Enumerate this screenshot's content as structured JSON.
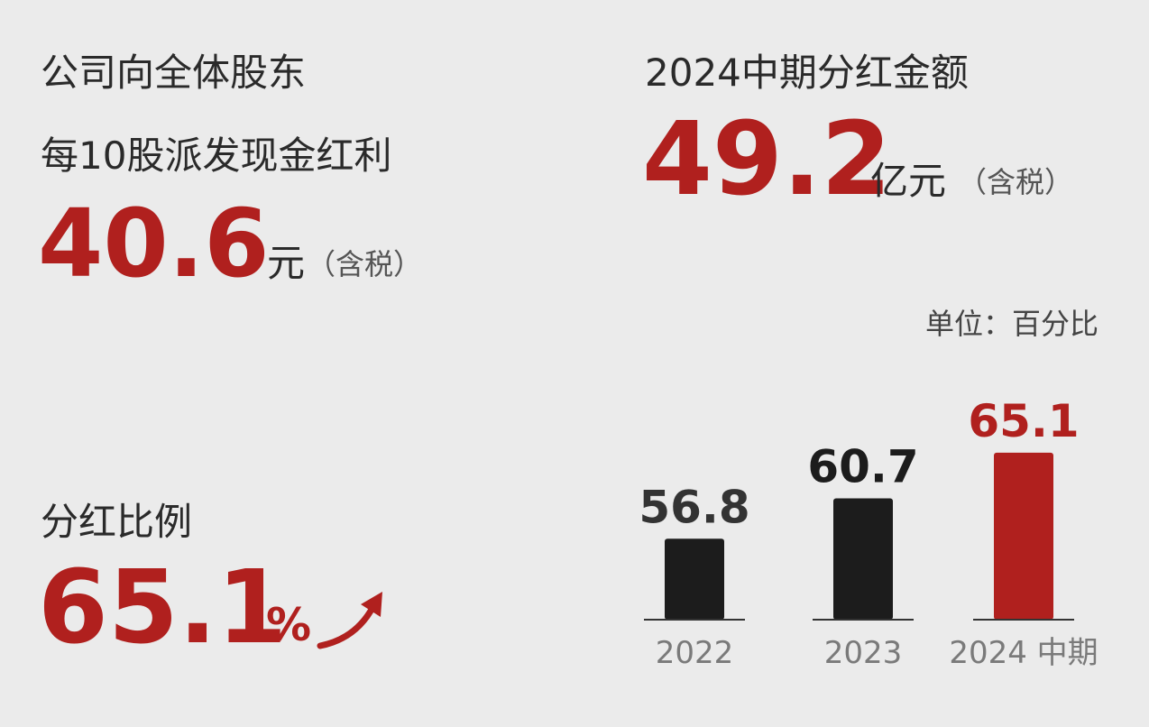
{
  "left": {
    "line1": "公司向全体股东",
    "line2": "每10股派发现金红利",
    "dividend": 40.6,
    "dividend_unit": "元",
    "dividend_note": "（含税）",
    "ratio_title": "分红比例",
    "ratio": 65.1,
    "ratio_unit": "%"
  },
  "right": {
    "title": "2024中期分红金额",
    "amount": 49.2,
    "amount_unit": "亿元",
    "amount_note": "（含税）"
  },
  "chart_data": {
    "type": "bar",
    "unit_label": "单位：百分比",
    "categories": [
      "2022",
      "2023",
      "2024 中期"
    ],
    "values": [
      56.8,
      60.7,
      65.1
    ],
    "colors": [
      "#1c1c1c",
      "#1c1c1c",
      "#b0201e"
    ],
    "label_colors": [
      "#333333",
      "#1c1c1c",
      "#b0201e"
    ],
    "ylim": [
      49,
      69
    ]
  }
}
